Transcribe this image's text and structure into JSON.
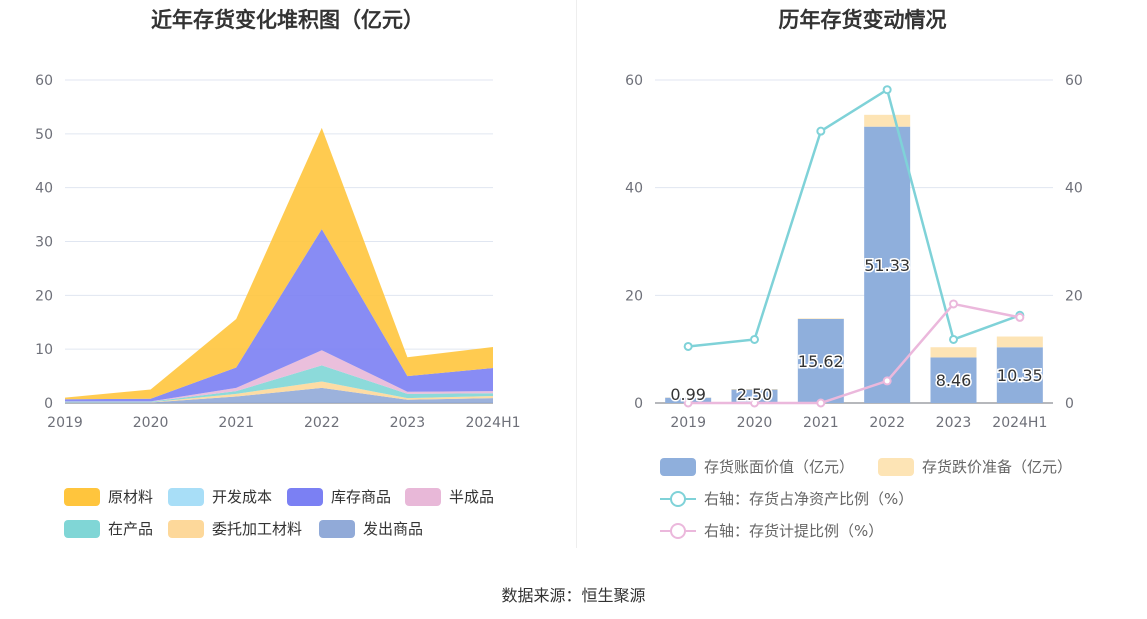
{
  "left_chart": {
    "title": "近年存货变化堆积图（亿元）"
  },
  "right_chart": {
    "title": "历年存货变动情况"
  },
  "source": "数据来源：恒生聚源",
  "chart_data": [
    {
      "type": "area",
      "stacked": true,
      "title": "近年存货变化堆积图（亿元）",
      "categories": [
        "2019",
        "2020",
        "2021",
        "2022",
        "2023",
        "2024H1"
      ],
      "ylim": [
        0,
        60
      ],
      "yticks": [
        0,
        10,
        20,
        30,
        40,
        50,
        60
      ],
      "grid": true,
      "legend_position": "bottom",
      "series": [
        {
          "name": "发出商品",
          "color": "#91aad8",
          "values": [
            0.1,
            0.1,
            1.2,
            2.8,
            0.6,
            0.9
          ]
        },
        {
          "name": "委托加工材料",
          "color": "#fdd89a",
          "values": [
            0.05,
            0.05,
            0.5,
            1.2,
            0.3,
            0.4
          ]
        },
        {
          "name": "在产品",
          "color": "#80d6d6",
          "values": [
            0.1,
            0.1,
            0.5,
            3.0,
            0.8,
            0.5
          ]
        },
        {
          "name": "半成品",
          "color": "#e8b8d8",
          "values": [
            0.05,
            0.05,
            0.6,
            2.8,
            0.4,
            0.4
          ]
        },
        {
          "name": "库存商品",
          "color": "#7b80f3",
          "values": [
            0.4,
            0.5,
            3.8,
            22.5,
            2.9,
            4.3
          ]
        },
        {
          "name": "开发成本",
          "color": "#a8def7",
          "values": [
            0,
            0,
            0,
            0,
            0,
            0
          ]
        },
        {
          "name": "原材料",
          "color": "#ffc53d",
          "values": [
            0.3,
            1.7,
            9.0,
            18.8,
            3.5,
            3.9
          ]
        }
      ],
      "legend_order": [
        "原材料",
        "开发成本",
        "库存商品",
        "半成品",
        "在产品",
        "委托加工材料",
        "发出商品"
      ]
    },
    {
      "type": "bar",
      "title": "历年存货变动情况",
      "categories": [
        "2019",
        "2020",
        "2021",
        "2022",
        "2023",
        "2024H1"
      ],
      "ylim": [
        0,
        60
      ],
      "yticks": [
        0,
        20,
        40,
        60
      ],
      "y2lim": [
        0,
        60
      ],
      "y2ticks": [
        0,
        20,
        40,
        60
      ],
      "grid": true,
      "legend_position": "bottom",
      "series": [
        {
          "name": "存货账面价值（亿元）",
          "kind": "bar",
          "color": "#8fafdc",
          "values": [
            0.99,
            2.5,
            15.62,
            51.33,
            8.46,
            10.35
          ],
          "labels": [
            "0.99",
            "2.50",
            "15.62",
            "51.33",
            "8.46",
            "10.35"
          ]
        },
        {
          "name": "存货跌价准备（亿元）",
          "kind": "bar",
          "color": "#fde4b5",
          "values": [
            0.05,
            0.1,
            0.1,
            2.2,
            1.9,
            2.0
          ]
        },
        {
          "name": "右轴：存货占净资产比例（%）",
          "kind": "line",
          "axis": "right",
          "color": "#7fd2d8",
          "values": [
            10.5,
            11.8,
            50.5,
            58.2,
            11.8,
            16.3
          ]
        },
        {
          "name": "右轴：存货计提比例（%）",
          "kind": "line",
          "axis": "right",
          "color": "#ebb8dc",
          "values": [
            0,
            0,
            0,
            4.1,
            18.4,
            15.9
          ]
        }
      ]
    }
  ]
}
